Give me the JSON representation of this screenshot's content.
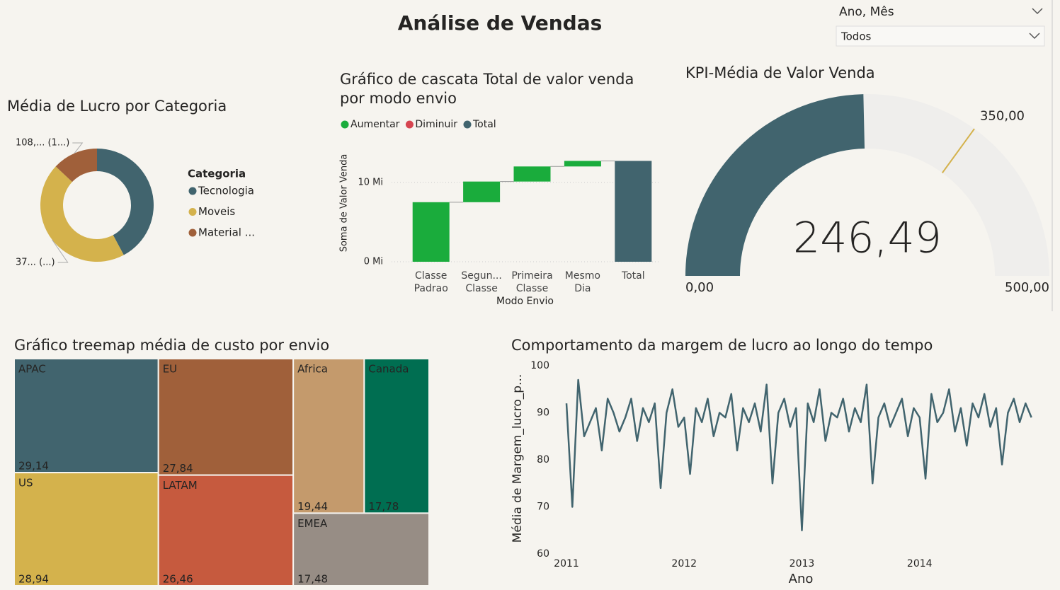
{
  "title": "Análise de Vendas",
  "slicer": {
    "label": "Ano, Mês",
    "value": "Todos"
  },
  "chart_data": [
    {
      "type": "donut",
      "title": "Média de Lucro por Categoria",
      "legend_title": "Categoria",
      "categories": [
        "Tecnologia",
        "Moveis",
        "Material ..."
      ],
      "values": [
        350,
        372,
        108
      ],
      "value_labels": [
        null,
        "37... (...)",
        "108,... (1...)"
      ],
      "colors": [
        "#41646e",
        "#d4b24c",
        "#a0603a"
      ]
    },
    {
      "type": "waterfall",
      "title": "Gráfico de cascata Total de valor venda por modo envio",
      "x_label": "Modo Envio",
      "y_label": "Soma de Valor Venda",
      "categories": [
        "Classe Padrao",
        "Segun... Classe",
        "Primeira Classe",
        "Mesmo Dia",
        "Total"
      ],
      "values": [
        7500000,
        2600000,
        1900000,
        700000,
        12700000
      ],
      "is_total": [
        false,
        false,
        false,
        false,
        true
      ],
      "legend": [
        {
          "name": "Aumentar",
          "color": "#1aac3c"
        },
        {
          "name": "Diminuir",
          "color": "#d64550"
        },
        {
          "name": "Total",
          "color": "#41646e"
        }
      ],
      "ylim": [
        0,
        14700000
      ],
      "yticks": [
        {
          "value": 0,
          "label": "0 Mi"
        },
        {
          "value": 10000000,
          "label": "10 Mi"
        }
      ],
      "grid": true
    },
    {
      "type": "gauge",
      "title": "KPI-Média de Valor Venda",
      "values": [
        246.49
      ],
      "value_labels": [
        "246,49"
      ],
      "ylim": [
        0,
        500
      ],
      "yticks": [
        {
          "value": 0,
          "label": "0,00"
        },
        {
          "value": 500,
          "label": "500,00"
        }
      ],
      "target": {
        "value": 350,
        "label": "350,00"
      },
      "color": "#41646e",
      "track_color": "#efeeec",
      "target_color": "#d4b24c"
    },
    {
      "type": "treemap",
      "title": "Gráfico treemap média de custo por envio",
      "categories": [
        "APAC",
        "EU",
        "Africa",
        "Canada",
        "US",
        "LATAM",
        "EMEA"
      ],
      "values": [
        29.14,
        27.84,
        19.44,
        17.78,
        28.94,
        26.46,
        17.48
      ],
      "value_labels": [
        "29,14",
        "27,84",
        "19,44",
        "17,78",
        "28,94",
        "26,46",
        "17,48"
      ],
      "colors": [
        "#41646e",
        "#a0603a",
        "#c49a6c",
        "#006e51",
        "#d4b24c",
        "#c65a3e",
        "#978d85"
      ]
    },
    {
      "type": "line",
      "title": "Comportamento da margem de lucro ao longo do tempo",
      "x_label": "Ano",
      "y_label": "Média de Margem_lucro_p...",
      "x": [
        2011.0,
        2011.05,
        2011.1,
        2011.15,
        2011.2,
        2011.25,
        2011.3,
        2011.35,
        2011.4,
        2011.45,
        2011.5,
        2011.55,
        2011.6,
        2011.65,
        2011.7,
        2011.75,
        2011.8,
        2011.85,
        2011.9,
        2011.95,
        2012.0,
        2012.05,
        2012.1,
        2012.15,
        2012.2,
        2012.25,
        2012.3,
        2012.35,
        2012.4,
        2012.45,
        2012.5,
        2012.55,
        2012.6,
        2012.65,
        2012.7,
        2012.75,
        2012.8,
        2012.85,
        2012.9,
        2012.95,
        2013.0,
        2013.05,
        2013.1,
        2013.15,
        2013.2,
        2013.25,
        2013.3,
        2013.35,
        2013.4,
        2013.45,
        2013.5,
        2013.55,
        2013.6,
        2013.65,
        2013.7,
        2013.75,
        2013.8,
        2013.85,
        2013.9,
        2013.95,
        2014.0,
        2014.05,
        2014.1,
        2014.15,
        2014.2,
        2014.25,
        2014.3,
        2014.35,
        2014.4,
        2014.45,
        2014.5,
        2014.55,
        2014.6,
        2014.65,
        2014.7,
        2014.75,
        2014.8,
        2014.85,
        2014.9,
        2014.95
      ],
      "values": [
        92,
        70,
        97,
        85,
        88,
        91,
        82,
        93,
        90,
        86,
        89,
        93,
        84,
        91,
        88,
        92,
        74,
        90,
        95,
        87,
        89,
        77,
        91,
        88,
        93,
        85,
        90,
        89,
        94,
        82,
        91,
        88,
        92,
        86,
        96,
        75,
        90,
        93,
        87,
        91,
        65,
        92,
        88,
        95,
        84,
        90,
        89,
        93,
        86,
        91,
        88,
        96,
        75,
        89,
        92,
        87,
        90,
        93,
        85,
        91,
        89,
        76,
        94,
        88,
        90,
        95,
        86,
        91,
        83,
        92,
        89,
        94,
        87,
        91,
        79,
        90,
        93,
        88,
        92,
        89
      ],
      "color": "#41646e",
      "xlim": [
        2011,
        2015
      ],
      "xticks": [
        2011,
        2012,
        2013,
        2014
      ],
      "ylim": [
        60,
        100
      ],
      "yticks": [
        60,
        70,
        80,
        90,
        100
      ],
      "grid": false
    }
  ]
}
